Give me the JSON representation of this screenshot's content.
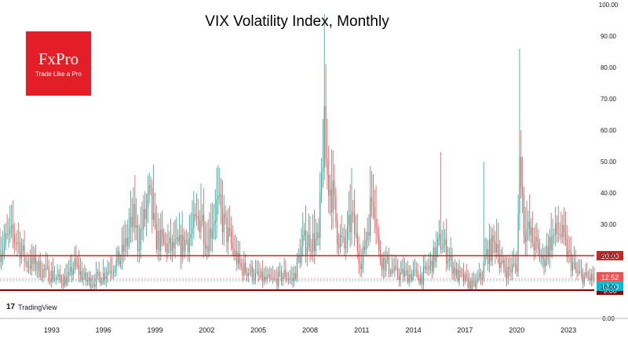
{
  "chart_data": {
    "type": "candlestick",
    "title": "VIX Volatility Index, Monthly",
    "ylim": [
      0,
      100
    ],
    "y_ticks": [
      "100.00",
      "90.00",
      "80.00",
      "70.00",
      "60.00",
      "50.00",
      "40.00",
      "30.00",
      "20.00",
      "10.00",
      "0.00"
    ],
    "x_ticks": [
      "1993",
      "1996",
      "1999",
      "2002",
      "2005",
      "2008",
      "2011",
      "2014",
      "2017",
      "2020",
      "2023"
    ],
    "x_range": [
      1990.0,
      2024.5
    ],
    "grid": false,
    "up_color": "#26a69a",
    "down_color": "#ef5350",
    "horizontal_lines": [
      {
        "value": 20,
        "label": "20.00",
        "color": "#c62828"
      },
      {
        "value": 9,
        "label": "9.00",
        "color": "#8b0000"
      }
    ],
    "price_labels": [
      {
        "value": 12.52,
        "label": "12.52",
        "color": "#ef5350"
      },
      {
        "value": 12.0,
        "label": "12.00",
        "color": "#00bcd4"
      }
    ],
    "anchor_points": [
      [
        1990.0,
        22
      ],
      [
        1990.6,
        26
      ],
      [
        1991.0,
        25
      ],
      [
        1991.5,
        18
      ],
      [
        1992.0,
        17
      ],
      [
        1992.5,
        15
      ],
      [
        1993.0,
        14
      ],
      [
        1993.5,
        12
      ],
      [
        1994.0,
        13
      ],
      [
        1994.3,
        17
      ],
      [
        1995.0,
        12
      ],
      [
        1995.5,
        12
      ],
      [
        1996.0,
        14
      ],
      [
        1996.6,
        17
      ],
      [
        1997.0,
        19
      ],
      [
        1997.8,
        32
      ],
      [
        1998.0,
        24
      ],
      [
        1998.7,
        38
      ],
      [
        1999.0,
        26
      ],
      [
        1999.6,
        23
      ],
      [
        2000.0,
        22
      ],
      [
        2000.5,
        23
      ],
      [
        2001.0,
        26
      ],
      [
        2001.7,
        33
      ],
      [
        2002.0,
        24
      ],
      [
        2002.6,
        36
      ],
      [
        2003.0,
        30
      ],
      [
        2003.5,
        22
      ],
      [
        2004.0,
        16
      ],
      [
        2004.5,
        15
      ],
      [
        2005.0,
        13
      ],
      [
        2005.5,
        12
      ],
      [
        2006.0,
        12
      ],
      [
        2006.5,
        14
      ],
      [
        2007.0,
        12
      ],
      [
        2007.6,
        24
      ],
      [
        2008.0,
        25
      ],
      [
        2008.5,
        24
      ],
      [
        2008.8,
        60
      ],
      [
        2009.0,
        45
      ],
      [
        2009.3,
        40
      ],
      [
        2009.6,
        27
      ],
      [
        2010.0,
        22
      ],
      [
        2010.4,
        32
      ],
      [
        2011.0,
        17
      ],
      [
        2011.7,
        42
      ],
      [
        2012.0,
        20
      ],
      [
        2012.5,
        17
      ],
      [
        2013.0,
        14
      ],
      [
        2013.5,
        14
      ],
      [
        2014.0,
        14
      ],
      [
        2014.5,
        13
      ],
      [
        2015.0,
        17
      ],
      [
        2015.6,
        25
      ],
      [
        2016.0,
        20
      ],
      [
        2016.5,
        14
      ],
      [
        2017.0,
        12
      ],
      [
        2017.5,
        10
      ],
      [
        2018.0,
        14
      ],
      [
        2018.2,
        20
      ],
      [
        2018.9,
        25
      ],
      [
        2019.0,
        17
      ],
      [
        2019.5,
        15
      ],
      [
        2020.0,
        17
      ],
      [
        2020.2,
        55
      ],
      [
        2020.4,
        30
      ],
      [
        2021.0,
        24
      ],
      [
        2021.5,
        18
      ],
      [
        2022.0,
        25
      ],
      [
        2022.5,
        28
      ],
      [
        2023.0,
        20
      ],
      [
        2023.5,
        14
      ],
      [
        2024.0,
        13
      ],
      [
        2024.5,
        12.52
      ]
    ],
    "spike_highs": [
      [
        1990.6,
        36
      ],
      [
        1998.7,
        46
      ],
      [
        1998.9,
        49
      ],
      [
        2001.7,
        43
      ],
      [
        2002.6,
        48
      ],
      [
        2008.8,
        97
      ],
      [
        2008.9,
        81
      ],
      [
        2009.1,
        55
      ],
      [
        2010.4,
        48
      ],
      [
        2011.7,
        46
      ],
      [
        2015.6,
        53
      ],
      [
        2018.1,
        50
      ],
      [
        2020.2,
        86
      ],
      [
        2020.25,
        60
      ]
    ]
  },
  "logo": {
    "name": "FxPro",
    "tagline": "Trade Like a Pro"
  },
  "watermark": {
    "icon": "tradingview-icon",
    "text": "TradingView"
  }
}
